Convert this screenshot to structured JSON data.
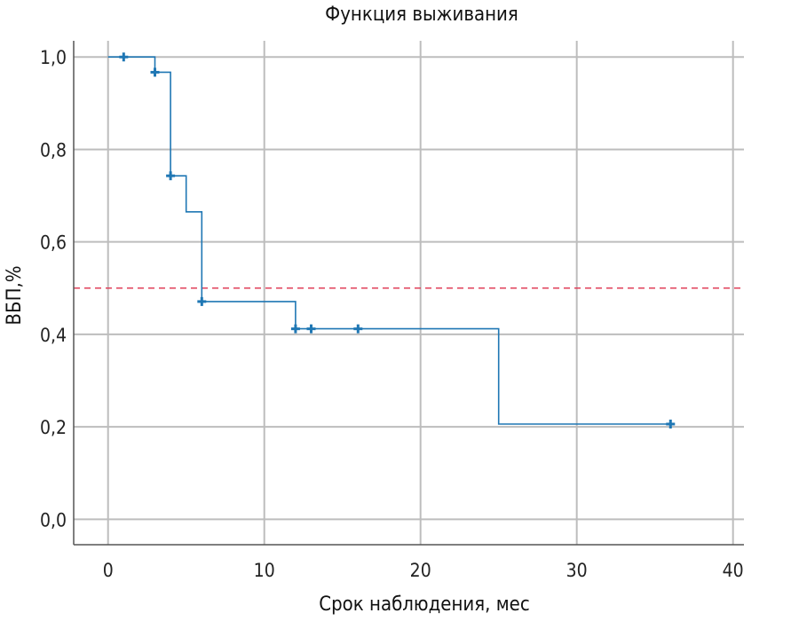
{
  "chart_data": {
    "type": "line",
    "title": "Функция выживания",
    "xlabel": "Срок наблюдения, мес",
    "ylabel": "ВБП,%",
    "xlim": [
      -2.2,
      40.7
    ],
    "ylim": [
      -0.055,
      1.035
    ],
    "x_ticks": [
      0,
      10,
      20,
      30,
      40
    ],
    "y_ticks": [
      0.0,
      0.2,
      0.4,
      0.6,
      0.8,
      1.0
    ],
    "x_tick_labels": [
      "0",
      "10",
      "20",
      "30",
      "40"
    ],
    "y_tick_labels": [
      "0,0",
      "0,2",
      "0,4",
      "0,6",
      "0,8",
      "1,0"
    ],
    "grid": true,
    "reference_line": {
      "y": 0.5,
      "style": "dashed",
      "color": "#e0405a"
    },
    "series": [
      {
        "color": "#1f77b4",
        "steps": [
          [
            0,
            1.0
          ],
          [
            3,
            1.0
          ],
          [
            3,
            0.967
          ],
          [
            4,
            0.967
          ],
          [
            4,
            0.743
          ],
          [
            5,
            0.743
          ],
          [
            5,
            0.665
          ],
          [
            6,
            0.665
          ],
          [
            6,
            0.471
          ],
          [
            12,
            0.471
          ],
          [
            12,
            0.412
          ],
          [
            25,
            0.412
          ],
          [
            25,
            0.206
          ],
          [
            36,
            0.206
          ]
        ],
        "censored": [
          [
            1,
            1.0
          ],
          [
            3,
            0.967
          ],
          [
            4,
            0.743
          ],
          [
            6,
            0.471
          ],
          [
            12,
            0.412
          ],
          [
            13,
            0.412
          ],
          [
            16,
            0.412
          ],
          [
            36,
            0.206
          ]
        ]
      }
    ]
  }
}
